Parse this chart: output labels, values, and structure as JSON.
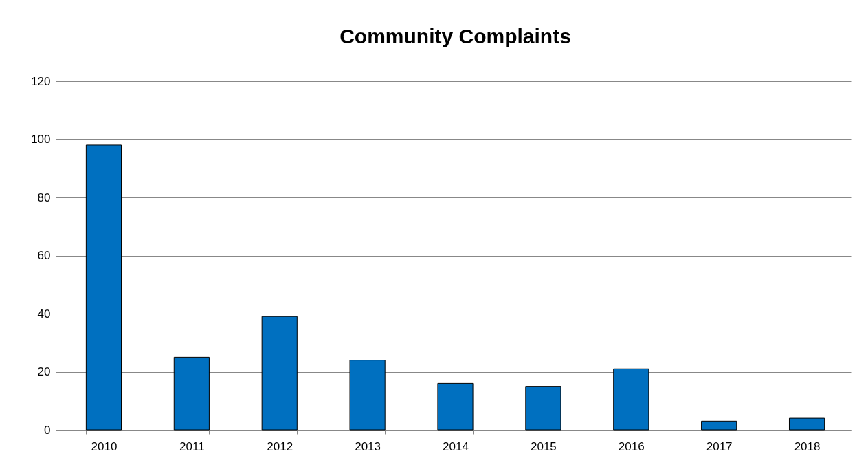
{
  "chart_data": {
    "type": "bar",
    "title": "Community Complaints",
    "categories": [
      "2010",
      "2011",
      "2012",
      "2013",
      "2014",
      "2015",
      "2016",
      "2017",
      "2018"
    ],
    "values": [
      98,
      25,
      39,
      24,
      16,
      15,
      21,
      3,
      4
    ],
    "color": "#0070c0",
    "ylim": [
      0,
      120
    ],
    "yticks": [
      0,
      20,
      40,
      60,
      80,
      100,
      120
    ],
    "grid": "y"
  }
}
